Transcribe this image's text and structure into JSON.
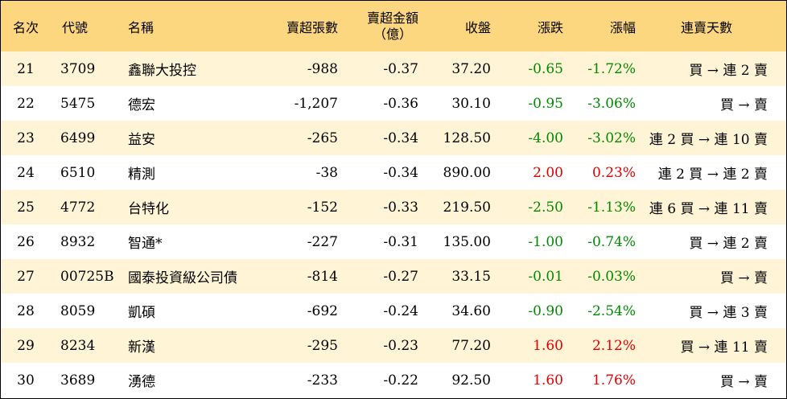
{
  "headers": {
    "rank": "名次",
    "code": "代號",
    "name": "名稱",
    "lots": "賣超張數",
    "amount_line1": "賣超金額",
    "amount_line2": "（億）",
    "close": "收盤",
    "change": "漲跌",
    "pct": "漲幅",
    "days": "連賣天數"
  },
  "colors": {
    "header_bg": "#fcd77f",
    "alt_row_bg": "#fff4d6",
    "up": "#e00000",
    "down": "#008a00"
  },
  "rows": [
    {
      "rank": "21",
      "code": "3709",
      "name": "鑫聯大投控",
      "lots": "-988",
      "amount": "-0.37",
      "close": "37.20",
      "change": "-0.65",
      "pct": "-1.72%",
      "dir": "down",
      "days": "買 → 連 2 賣"
    },
    {
      "rank": "22",
      "code": "5475",
      "name": "德宏",
      "lots": "-1,207",
      "amount": "-0.36",
      "close": "30.10",
      "change": "-0.95",
      "pct": "-3.06%",
      "dir": "down",
      "days": "買 → 賣"
    },
    {
      "rank": "23",
      "code": "6499",
      "name": "益安",
      "lots": "-265",
      "amount": "-0.34",
      "close": "128.50",
      "change": "-4.00",
      "pct": "-3.02%",
      "dir": "down",
      "days": "連 2 買 → 連 10 賣"
    },
    {
      "rank": "24",
      "code": "6510",
      "name": "精測",
      "lots": "-38",
      "amount": "-0.34",
      "close": "890.00",
      "change": "2.00",
      "pct": "0.23%",
      "dir": "up",
      "days": "連 2 買 → 連 2 賣"
    },
    {
      "rank": "25",
      "code": "4772",
      "name": "台特化",
      "lots": "-152",
      "amount": "-0.33",
      "close": "219.50",
      "change": "-2.50",
      "pct": "-1.13%",
      "dir": "down",
      "days": "連 6 買 → 連 11 賣"
    },
    {
      "rank": "26",
      "code": "8932",
      "name": "智通*",
      "lots": "-227",
      "amount": "-0.31",
      "close": "135.00",
      "change": "-1.00",
      "pct": "-0.74%",
      "dir": "down",
      "days": "買 → 連 2 賣"
    },
    {
      "rank": "27",
      "code": "00725B",
      "name": "國泰投資級公司債",
      "lots": "-814",
      "amount": "-0.27",
      "close": "33.15",
      "change": "-0.01",
      "pct": "-0.03%",
      "dir": "down",
      "days": "買 → 賣"
    },
    {
      "rank": "28",
      "code": "8059",
      "name": "凱碩",
      "lots": "-692",
      "amount": "-0.24",
      "close": "34.60",
      "change": "-0.90",
      "pct": "-2.54%",
      "dir": "down",
      "days": "買 → 連 3 賣"
    },
    {
      "rank": "29",
      "code": "8234",
      "name": "新漢",
      "lots": "-295",
      "amount": "-0.23",
      "close": "77.20",
      "change": "1.60",
      "pct": "2.12%",
      "dir": "up",
      "days": "買 → 連 11 賣"
    },
    {
      "rank": "30",
      "code": "3689",
      "name": "湧德",
      "lots": "-233",
      "amount": "-0.22",
      "close": "92.50",
      "change": "1.60",
      "pct": "1.76%",
      "dir": "up",
      "days": "買 → 賣"
    }
  ]
}
